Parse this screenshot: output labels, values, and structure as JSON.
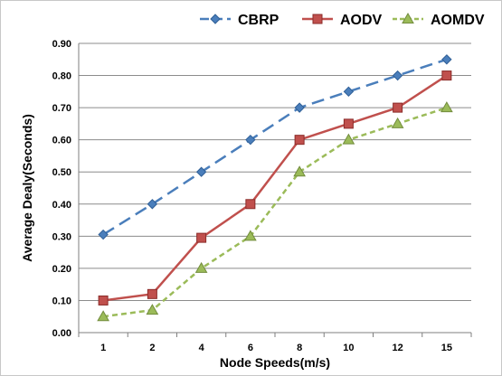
{
  "chart_data": {
    "type": "line",
    "title": "",
    "xlabel": "Node Speeds(m/s)",
    "ylabel": "Average Dealy(Seconds)",
    "categories": [
      "1",
      "2",
      "4",
      "6",
      "8",
      "10",
      "12",
      "15"
    ],
    "ylim": [
      0,
      0.9
    ],
    "yticks": [
      "0.00",
      "0.10",
      "0.20",
      "0.30",
      "0.40",
      "0.50",
      "0.60",
      "0.70",
      "0.80",
      "0.90"
    ],
    "grid": "horizontal",
    "legend_position": "top",
    "series": [
      {
        "name": "CBRP",
        "values": [
          0.305,
          0.4,
          0.5,
          0.6,
          0.7,
          0.75,
          0.8,
          0.85
        ],
        "color": "#4a7ebb",
        "marker": "diamond",
        "line": "long-dash"
      },
      {
        "name": "AODV",
        "values": [
          0.1,
          0.12,
          0.295,
          0.4,
          0.6,
          0.65,
          0.7,
          0.8
        ],
        "color": "#c0504d",
        "marker": "square",
        "line": "solid"
      },
      {
        "name": "AOMDV",
        "values": [
          0.05,
          0.07,
          0.2,
          0.3,
          0.5,
          0.6,
          0.65,
          0.7
        ],
        "color": "#9bbb59",
        "marker": "triangle",
        "line": "dash"
      }
    ]
  }
}
